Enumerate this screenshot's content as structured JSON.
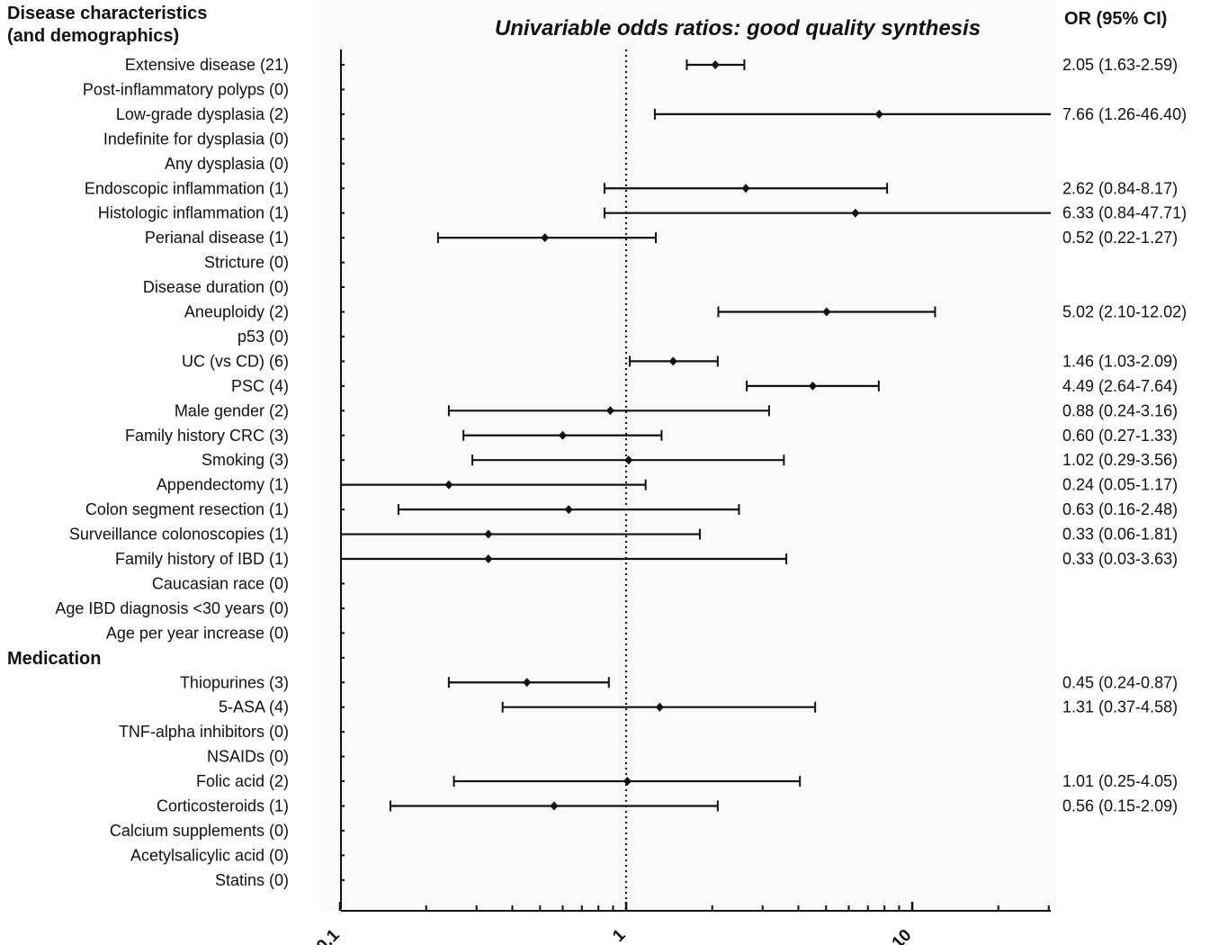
{
  "chart_data": {
    "type": "forest",
    "title": "Univariable odds ratios: good quality synthesis",
    "left_header": [
      "Disease characteristics",
      "(and demographics)"
    ],
    "right_header": "OR (95% CI)",
    "x_scale": "log",
    "xlim": [
      0.1,
      30
    ],
    "x_ticks": [
      "0.1",
      "1",
      "10"
    ],
    "reference_line": 1,
    "sections": [
      {
        "name": "",
        "rows": [
          {
            "label": "Extensive disease (21)",
            "or": 2.05,
            "lo": 1.63,
            "hi": 2.59,
            "text": "2.05 (1.63-2.59)"
          },
          {
            "label": "Post-inflammatory polyps (0)"
          },
          {
            "label": "Low-grade dysplasia (2)",
            "or": 7.66,
            "lo": 1.26,
            "hi": 46.4,
            "text": "7.66 (1.26-46.40)"
          },
          {
            "label": "Indefinite for dysplasia (0)"
          },
          {
            "label": "Any dysplasia (0)"
          },
          {
            "label": "Endoscopic inflammation (1)",
            "or": 2.62,
            "lo": 0.84,
            "hi": 8.17,
            "text": "2.62 (0.84-8.17)"
          },
          {
            "label": "Histologic inflammation (1)",
            "or": 6.33,
            "lo": 0.84,
            "hi": 47.71,
            "text": "6.33 (0.84-47.71)"
          },
          {
            "label": "Perianal disease (1)",
            "or": 0.52,
            "lo": 0.22,
            "hi": 1.27,
            "text": "0.52 (0.22-1.27)"
          },
          {
            "label": "Stricture (0)"
          },
          {
            "label": "Disease duration (0)"
          },
          {
            "label": "Aneuploidy (2)",
            "or": 5.02,
            "lo": 2.1,
            "hi": 12.02,
            "text": "5.02 (2.10-12.02)"
          },
          {
            "label": "p53 (0)"
          },
          {
            "label": "UC (vs CD) (6)",
            "or": 1.46,
            "lo": 1.03,
            "hi": 2.09,
            "text": "1.46 (1.03-2.09)"
          },
          {
            "label": "PSC (4)",
            "or": 4.49,
            "lo": 2.64,
            "hi": 7.64,
            "text": "4.49 (2.64-7.64)"
          },
          {
            "label": "Male gender (2)",
            "or": 0.88,
            "lo": 0.24,
            "hi": 3.16,
            "text": "0.88 (0.24-3.16)"
          },
          {
            "label": "Family history CRC (3)",
            "or": 0.6,
            "lo": 0.27,
            "hi": 1.33,
            "text": "0.60 (0.27-1.33)"
          },
          {
            "label": "Smoking (3)",
            "or": 1.02,
            "lo": 0.29,
            "hi": 3.56,
            "text": "1.02 (0.29-3.56)"
          },
          {
            "label": "Appendectomy (1)",
            "or": 0.24,
            "lo": 0.05,
            "hi": 1.17,
            "text": "0.24 (0.05-1.17)"
          },
          {
            "label": "Colon segment resection (1)",
            "or": 0.63,
            "lo": 0.16,
            "hi": 2.48,
            "text": "0.63 (0.16-2.48)"
          },
          {
            "label": "Surveillance colonoscopies (1)",
            "or": 0.33,
            "lo": 0.06,
            "hi": 1.81,
            "text": "0.33 (0.06-1.81)"
          },
          {
            "label": "Family history of IBD (1)",
            "or": 0.33,
            "lo": 0.03,
            "hi": 3.63,
            "text": "0.33 (0.03-3.63)"
          },
          {
            "label": "Caucasian race (0)"
          },
          {
            "label": "Age IBD diagnosis <30 years (0)"
          },
          {
            "label": "Age per year increase (0)"
          }
        ]
      },
      {
        "name": "Medication",
        "rows": [
          {
            "label": "Thiopurines (3)",
            "or": 0.45,
            "lo": 0.24,
            "hi": 0.87,
            "text": "0.45 (0.24-0.87)"
          },
          {
            "label": "5-ASA (4)",
            "or": 1.31,
            "lo": 0.37,
            "hi": 4.58,
            "text": "1.31 (0.37-4.58)"
          },
          {
            "label": "TNF-alpha inhibitors (0)"
          },
          {
            "label": "NSAIDs (0)"
          },
          {
            "label": "Folic acid (2)",
            "or": 1.01,
            "lo": 0.25,
            "hi": 4.05,
            "text": "1.01 (0.25-4.05)"
          },
          {
            "label": "Corticosteroids (1)",
            "or": 0.56,
            "lo": 0.15,
            "hi": 2.09,
            "text": "0.56 (0.15-2.09)"
          },
          {
            "label": "Calcium supplements (0)"
          },
          {
            "label": "Acetylsalicylic acid (0)"
          },
          {
            "label": "Statins (0)"
          }
        ]
      }
    ]
  }
}
